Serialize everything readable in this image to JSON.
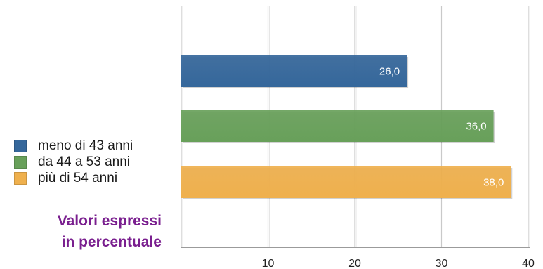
{
  "chart_data": {
    "type": "bar",
    "orientation": "horizontal",
    "categories": [
      "meno di 43 anni",
      "da 44 a 53 anni",
      "più di 54 anni"
    ],
    "values": [
      26.0,
      36.0,
      38.0
    ],
    "value_labels": [
      "26,0",
      "36,0",
      "38,0"
    ],
    "colors": [
      "#35679b",
      "#68a05a",
      "#efb04d"
    ],
    "xlim": [
      0,
      40
    ],
    "xticks": [
      10,
      20,
      30,
      40
    ],
    "grid": true,
    "legend_position": "left"
  },
  "legend": {
    "items": [
      {
        "label": "meno di 43 anni",
        "color": "#35679b"
      },
      {
        "label": "da 44 a 53 anni",
        "color": "#68a05a"
      },
      {
        "label": "più di 54 anni",
        "color": "#efb04d"
      }
    ]
  },
  "note": {
    "line1": "Valori espressi",
    "line2": "in percentuale",
    "color": "#7a1f8f"
  }
}
